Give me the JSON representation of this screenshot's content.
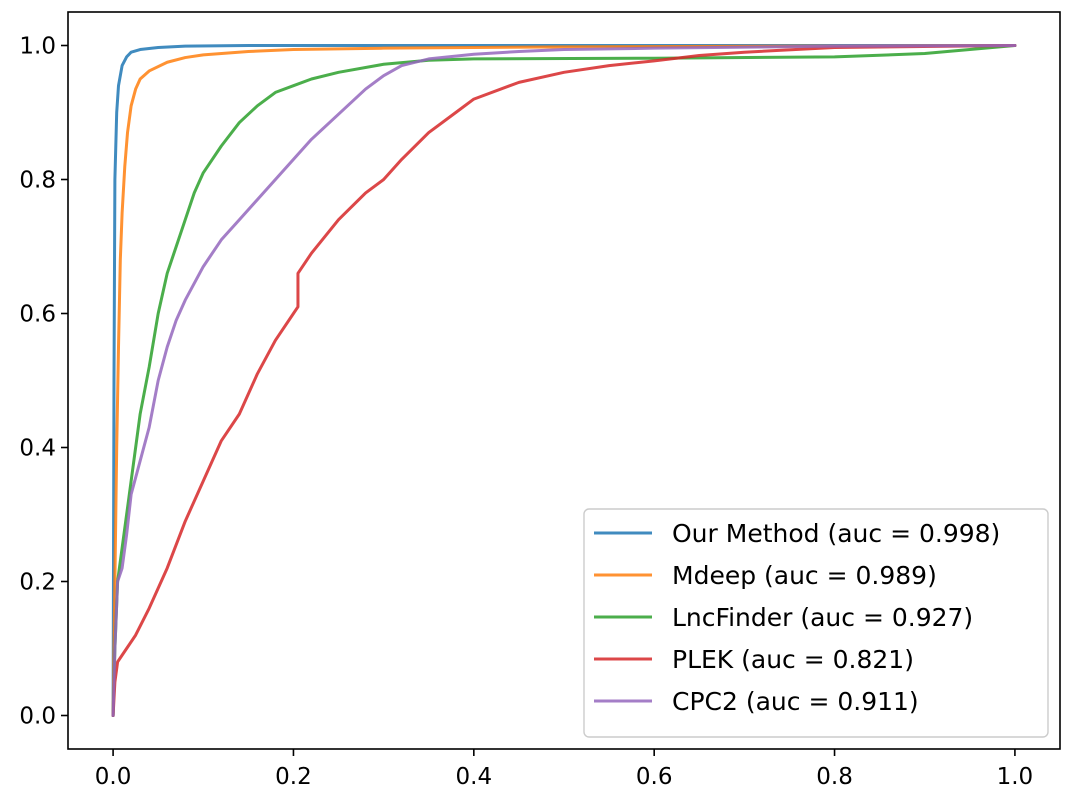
{
  "chart_data": {
    "type": "line",
    "title": "",
    "xlabel": "",
    "ylabel": "",
    "xlim": [
      -0.05,
      1.05
    ],
    "ylim": [
      -0.05,
      1.05
    ],
    "grid": false,
    "legend_position": "lower-right",
    "x_ticks": [
      {
        "value": 0.0,
        "label": "0.0"
      },
      {
        "value": 0.2,
        "label": "0.2"
      },
      {
        "value": 0.4,
        "label": "0.4"
      },
      {
        "value": 0.6,
        "label": "0.6"
      },
      {
        "value": 0.8,
        "label": "0.8"
      },
      {
        "value": 1.0,
        "label": "1.0"
      }
    ],
    "y_ticks": [
      {
        "value": 0.0,
        "label": "0.0"
      },
      {
        "value": 0.2,
        "label": "0.2"
      },
      {
        "value": 0.4,
        "label": "0.4"
      },
      {
        "value": 0.6,
        "label": "0.6"
      },
      {
        "value": 0.8,
        "label": "0.8"
      },
      {
        "value": 1.0,
        "label": "1.0"
      }
    ],
    "series": [
      {
        "name": "Our Method (auc = 0.998)",
        "color": "#1f77b4",
        "points": [
          [
            0,
            0
          ],
          [
            0.001,
            0.5
          ],
          [
            0.002,
            0.8
          ],
          [
            0.004,
            0.9
          ],
          [
            0.006,
            0.94
          ],
          [
            0.01,
            0.97
          ],
          [
            0.015,
            0.983
          ],
          [
            0.02,
            0.99
          ],
          [
            0.03,
            0.994
          ],
          [
            0.05,
            0.997
          ],
          [
            0.08,
            0.999
          ],
          [
            0.15,
            1.0
          ],
          [
            1.0,
            1.0
          ]
        ]
      },
      {
        "name": "Mdeep (auc = 0.989)",
        "color": "#ff7f0e",
        "points": [
          [
            0,
            0
          ],
          [
            0.002,
            0.2
          ],
          [
            0.004,
            0.4
          ],
          [
            0.006,
            0.55
          ],
          [
            0.008,
            0.68
          ],
          [
            0.01,
            0.75
          ],
          [
            0.013,
            0.82
          ],
          [
            0.016,
            0.87
          ],
          [
            0.02,
            0.91
          ],
          [
            0.025,
            0.935
          ],
          [
            0.03,
            0.95
          ],
          [
            0.04,
            0.962
          ],
          [
            0.06,
            0.975
          ],
          [
            0.08,
            0.982
          ],
          [
            0.1,
            0.986
          ],
          [
            0.15,
            0.991
          ],
          [
            0.2,
            0.994
          ],
          [
            0.3,
            0.996
          ],
          [
            0.5,
            0.998
          ],
          [
            1.0,
            1.0
          ]
        ]
      },
      {
        "name": "LncFinder (auc = 0.927)",
        "color": "#2ca02c",
        "points": [
          [
            0,
            0
          ],
          [
            0.002,
            0.1
          ],
          [
            0.005,
            0.2
          ],
          [
            0.01,
            0.25
          ],
          [
            0.015,
            0.3
          ],
          [
            0.02,
            0.35
          ],
          [
            0.03,
            0.45
          ],
          [
            0.04,
            0.52
          ],
          [
            0.05,
            0.6
          ],
          [
            0.06,
            0.66
          ],
          [
            0.07,
            0.7
          ],
          [
            0.08,
            0.74
          ],
          [
            0.09,
            0.78
          ],
          [
            0.1,
            0.81
          ],
          [
            0.12,
            0.85
          ],
          [
            0.14,
            0.885
          ],
          [
            0.16,
            0.91
          ],
          [
            0.18,
            0.93
          ],
          [
            0.2,
            0.94
          ],
          [
            0.22,
            0.95
          ],
          [
            0.25,
            0.96
          ],
          [
            0.3,
            0.972
          ],
          [
            0.35,
            0.978
          ],
          [
            0.4,
            0.98
          ],
          [
            0.6,
            0.981
          ],
          [
            0.8,
            0.983
          ],
          [
            0.9,
            0.988
          ],
          [
            1.0,
            1.0
          ]
        ]
      },
      {
        "name": "PLEK (auc = 0.821)",
        "color": "#d62728",
        "points": [
          [
            0,
            0
          ],
          [
            0.002,
            0.05
          ],
          [
            0.005,
            0.08
          ],
          [
            0.015,
            0.1
          ],
          [
            0.025,
            0.12
          ],
          [
            0.04,
            0.16
          ],
          [
            0.06,
            0.22
          ],
          [
            0.08,
            0.29
          ],
          [
            0.1,
            0.35
          ],
          [
            0.12,
            0.41
          ],
          [
            0.14,
            0.45
          ],
          [
            0.16,
            0.51
          ],
          [
            0.18,
            0.56
          ],
          [
            0.2,
            0.6
          ],
          [
            0.205,
            0.61
          ],
          [
            0.205,
            0.66
          ],
          [
            0.22,
            0.69
          ],
          [
            0.25,
            0.74
          ],
          [
            0.28,
            0.78
          ],
          [
            0.3,
            0.8
          ],
          [
            0.32,
            0.83
          ],
          [
            0.35,
            0.87
          ],
          [
            0.38,
            0.9
          ],
          [
            0.4,
            0.92
          ],
          [
            0.45,
            0.945
          ],
          [
            0.5,
            0.96
          ],
          [
            0.55,
            0.97
          ],
          [
            0.6,
            0.977
          ],
          [
            0.65,
            0.985
          ],
          [
            0.7,
            0.99
          ],
          [
            0.8,
            0.997
          ],
          [
            1.0,
            1.0
          ]
        ]
      },
      {
        "name": "CPC2 (auc = 0.911)",
        "color": "#9467bd",
        "points": [
          [
            0,
            0
          ],
          [
            0.002,
            0.1
          ],
          [
            0.005,
            0.2
          ],
          [
            0.01,
            0.22
          ],
          [
            0.015,
            0.27
          ],
          [
            0.02,
            0.33
          ],
          [
            0.03,
            0.38
          ],
          [
            0.04,
            0.43
          ],
          [
            0.05,
            0.5
          ],
          [
            0.06,
            0.55
          ],
          [
            0.07,
            0.59
          ],
          [
            0.08,
            0.62
          ],
          [
            0.1,
            0.67
          ],
          [
            0.12,
            0.71
          ],
          [
            0.14,
            0.74
          ],
          [
            0.16,
            0.77
          ],
          [
            0.18,
            0.8
          ],
          [
            0.2,
            0.83
          ],
          [
            0.22,
            0.86
          ],
          [
            0.24,
            0.885
          ],
          [
            0.26,
            0.91
          ],
          [
            0.28,
            0.935
          ],
          [
            0.3,
            0.955
          ],
          [
            0.32,
            0.97
          ],
          [
            0.35,
            0.98
          ],
          [
            0.4,
            0.987
          ],
          [
            0.45,
            0.991
          ],
          [
            0.5,
            0.994
          ],
          [
            0.6,
            0.996
          ],
          [
            0.8,
            0.999
          ],
          [
            1.0,
            1.0
          ]
        ]
      }
    ]
  }
}
